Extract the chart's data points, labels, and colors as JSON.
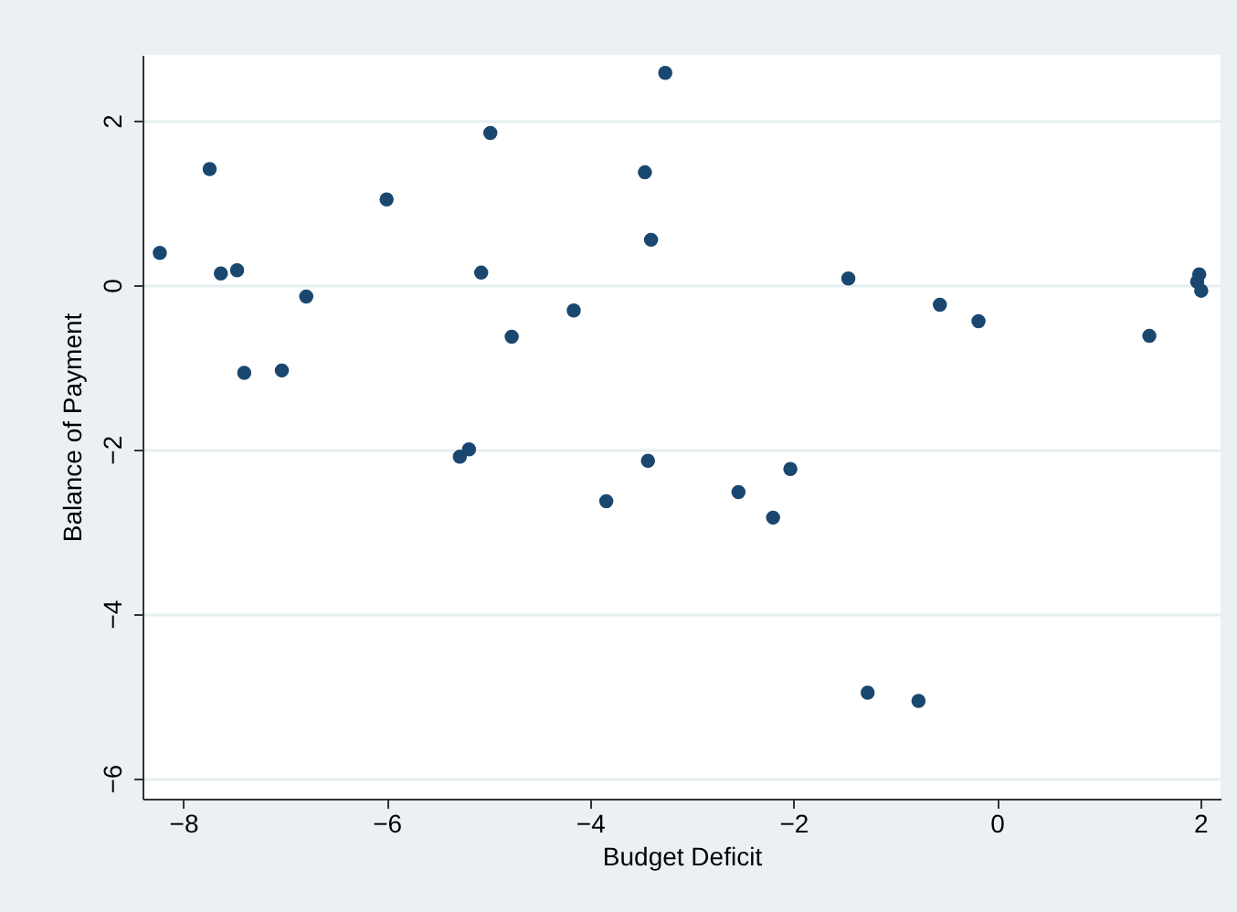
{
  "chart_data": {
    "type": "scatter",
    "xlabel": "Budget Deficit",
    "ylabel": "Balance of Payment",
    "x": [
      -8.23,
      -7.74,
      -7.63,
      -7.47,
      -7.4,
      -7.03,
      -6.79,
      -6.0,
      -4.98,
      -5.07,
      -4.77,
      -4.16,
      -5.28,
      -5.19,
      -3.84,
      -3.26,
      -3.46,
      -3.4,
      -3.43,
      -2.54,
      -2.03,
      -2.2,
      -1.46,
      -1.27,
      -0.77,
      -0.56,
      -0.18,
      1.5,
      1.99,
      1.97,
      2.01
    ],
    "series": [
      {
        "color": "#1a476f",
        "values": [
          0.39,
          1.41,
          0.14,
          0.18,
          -1.07,
          -1.04,
          -0.14,
          1.04,
          1.85,
          0.15,
          -0.63,
          -0.31,
          -2.09,
          -2.0,
          -2.63,
          2.58,
          1.37,
          0.55,
          -2.14,
          -2.52,
          -2.24,
          -2.83,
          0.08,
          -4.96,
          -5.06,
          -0.24,
          -0.44,
          -0.62,
          0.13,
          0.04,
          -0.07
        ]
      }
    ],
    "xlim": [
      -8.4,
      2.2
    ],
    "ylim": [
      -6.25,
      2.8
    ],
    "xticks": [
      -8,
      -6,
      -4,
      -2,
      0,
      2
    ],
    "yticks": [
      -6,
      -4,
      -2,
      0,
      2
    ],
    "grid": "y",
    "marker": "circle"
  }
}
